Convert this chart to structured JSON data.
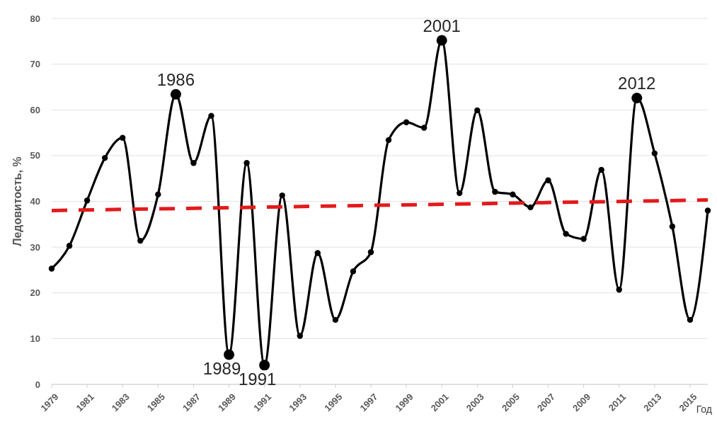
{
  "chart_data": {
    "type": "line",
    "xlabel": "Год",
    "ylabel": "Ледовитость, %",
    "x": [
      1979,
      1980,
      1981,
      1982,
      1983,
      1984,
      1985,
      1986,
      1987,
      1988,
      1989,
      1990,
      1991,
      1992,
      1993,
      1994,
      1995,
      1996,
      1997,
      1998,
      1999,
      2000,
      2001,
      2002,
      2003,
      2004,
      2005,
      2006,
      2007,
      2008,
      2009,
      2010,
      2011,
      2012,
      2013,
      2014,
      2015,
      2016
    ],
    "series": [
      {
        "color": "#000000",
        "marker": "circle",
        "line_style": "solid",
        "values": [
          25.3,
          30.3,
          40.2,
          49.5,
          53.9,
          31.4,
          41.5,
          63.4,
          48.4,
          58.7,
          6.5,
          48.4,
          4.2,
          41.3,
          10.6,
          28.7,
          14.1,
          24.7,
          28.9,
          53.4,
          57.3,
          56.1,
          75.2,
          41.8,
          59.9,
          42.1,
          41.5,
          38.7,
          44.6,
          32.9,
          31.8,
          46.9,
          20.7,
          62.6,
          50.5,
          34.5,
          14.1,
          38.0
        ]
      },
      {
        "type": "line",
        "color": "#e31a1c",
        "marker": "none",
        "line_style": "dashed",
        "x": [
          1979,
          2016
        ],
        "values": [
          38.0,
          40.3
        ]
      }
    ],
    "xlim": [
      1979,
      2016
    ],
    "xticks": [
      1979,
      1981,
      1983,
      1985,
      1987,
      1989,
      1991,
      1993,
      1995,
      1997,
      1999,
      2001,
      2003,
      2005,
      2007,
      2009,
      2011,
      2013,
      2015
    ],
    "ylim": [
      0,
      80
    ],
    "yticks": [
      0,
      10,
      20,
      30,
      40,
      50,
      60,
      70,
      80
    ],
    "grid": "y",
    "annotations": [
      {
        "text": "1986",
        "x": 1986,
        "y": 63.4
      },
      {
        "text": "1989",
        "x": 1989,
        "y": 6.5
      },
      {
        "text": "1991",
        "x": 1991,
        "y": 4.2
      },
      {
        "text": "2001",
        "x": 2001,
        "y": 75.2
      },
      {
        "text": "2012",
        "x": 2012,
        "y": 62.6
      }
    ]
  }
}
